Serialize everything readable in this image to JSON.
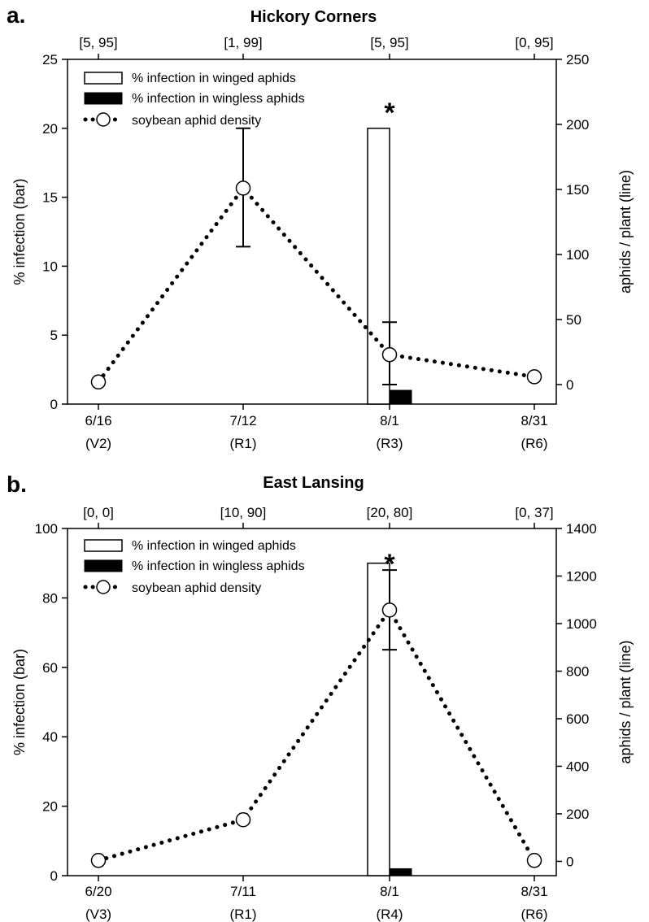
{
  "legend": {
    "winged": "% infection in winged aphids",
    "wingless": "% infection in wingless aphids",
    "density": "soybean aphid density"
  },
  "chart_data": [
    {
      "type": "bar",
      "panel": "a.",
      "title": "Hickory Corners",
      "categories": [
        "6/16",
        "7/12",
        "8/1",
        "8/31"
      ],
      "stages": [
        "(V2)",
        "(R1)",
        "(R3)",
        "(R6)"
      ],
      "top_labels": [
        "[5, 95]",
        "[1, 99]",
        "[5, 95]",
        "[0, 95]"
      ],
      "ylabel": "% infection (bar)",
      "y2label": "aphids / plant (line)",
      "ylim": [
        0,
        25
      ],
      "yticks": [
        0,
        5,
        10,
        15,
        20,
        25
      ],
      "y2lim": [
        -15,
        250
      ],
      "y2ticks": [
        0,
        50,
        100,
        150,
        200,
        250
      ],
      "series": [
        {
          "name": "% infection in winged aphids",
          "kind": "bar",
          "values": [
            null,
            null,
            20,
            null
          ]
        },
        {
          "name": "% infection in wingless aphids",
          "kind": "bar",
          "values": [
            null,
            null,
            1,
            null
          ]
        },
        {
          "name": "soybean aphid density",
          "kind": "line",
          "values": [
            2,
            151,
            23,
            6
          ],
          "error": [
            null,
            [
              106,
              197
            ],
            [
              0,
              48
            ],
            null
          ]
        }
      ],
      "annotations": [
        {
          "text": "*",
          "category": "8/1"
        }
      ],
      "grid": false,
      "legend_position": "top-left"
    },
    {
      "type": "bar",
      "panel": "b.",
      "title": "East Lansing",
      "categories": [
        "6/20",
        "7/11",
        "8/1",
        "8/31"
      ],
      "stages": [
        "(V3)",
        "(R1)",
        "(R4)",
        "(R6)"
      ],
      "top_labels": [
        "[0, 0]",
        "[10, 90]",
        "[20, 80]",
        "[0, 37]"
      ],
      "ylabel": "% infection (bar)",
      "y2label": "aphids / plant (line)",
      "ylim": [
        0,
        100
      ],
      "yticks": [
        0,
        20,
        40,
        60,
        80,
        100
      ],
      "y2lim": [
        -60,
        1400
      ],
      "y2ticks": [
        0,
        200,
        400,
        600,
        800,
        1000,
        1200,
        1400
      ],
      "series": [
        {
          "name": "% infection in winged aphids",
          "kind": "bar",
          "values": [
            null,
            null,
            90,
            null
          ]
        },
        {
          "name": "% infection in wingless aphids",
          "kind": "bar",
          "values": [
            null,
            null,
            2,
            null
          ]
        },
        {
          "name": "soybean aphid density",
          "kind": "line",
          "values": [
            4,
            175,
            1057,
            4
          ],
          "error": [
            null,
            null,
            [
              890,
              1225
            ],
            null
          ]
        }
      ],
      "annotations": [
        {
          "text": "*",
          "category": "8/1"
        }
      ],
      "grid": false,
      "legend_position": "top-left"
    }
  ]
}
